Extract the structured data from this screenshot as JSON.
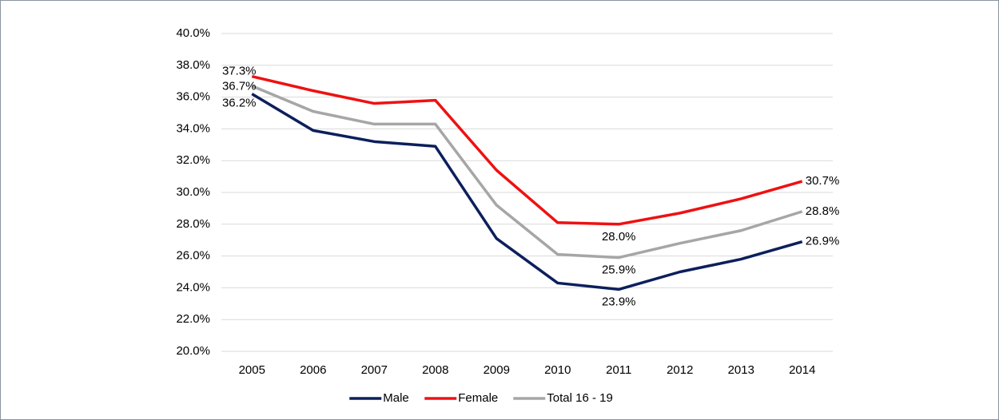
{
  "chart_data": {
    "type": "line",
    "categories": [
      "2005",
      "2006",
      "2007",
      "2008",
      "2009",
      "2010",
      "2011",
      "2012",
      "2013",
      "2014"
    ],
    "series": [
      {
        "name": "Male",
        "color": "#0c1f5c",
        "values": [
          36.2,
          33.9,
          33.2,
          32.9,
          27.1,
          24.3,
          23.9,
          25.0,
          25.8,
          26.9
        ],
        "value_labels": [
          "36.2%",
          null,
          null,
          null,
          null,
          null,
          "23.9%",
          null,
          null,
          "26.9%"
        ]
      },
      {
        "name": "Female",
        "color": "#ee1111",
        "values": [
          37.3,
          36.4,
          35.6,
          35.8,
          31.4,
          28.1,
          28.0,
          28.7,
          29.6,
          30.7
        ],
        "value_labels": [
          "37.3%",
          null,
          null,
          null,
          null,
          null,
          "28.0%",
          null,
          null,
          "30.7%"
        ]
      },
      {
        "name": "Total 16 - 19",
        "color": "#a6a6a6",
        "values": [
          36.7,
          35.1,
          34.3,
          34.3,
          29.2,
          26.1,
          25.9,
          26.8,
          27.6,
          28.8
        ],
        "value_labels": [
          "36.7%",
          null,
          null,
          null,
          null,
          null,
          "25.9%",
          null,
          null,
          "28.8%"
        ]
      }
    ],
    "ylim": [
      20,
      40
    ],
    "yticks": [
      {
        "value": 20,
        "label": "20.0%"
      },
      {
        "value": 22,
        "label": "22.0%"
      },
      {
        "value": 24,
        "label": "24.0%"
      },
      {
        "value": 26,
        "label": "26.0%"
      },
      {
        "value": 28,
        "label": "28.0%"
      },
      {
        "value": 30,
        "label": "30.0%"
      },
      {
        "value": 32,
        "label": "32.0%"
      },
      {
        "value": 34,
        "label": "34.0%"
      },
      {
        "value": 36,
        "label": "36.0%"
      },
      {
        "value": 38,
        "label": "38.0%"
      },
      {
        "value": 40,
        "label": "40.0%"
      }
    ],
    "grid": true,
    "legend": "bottom"
  }
}
